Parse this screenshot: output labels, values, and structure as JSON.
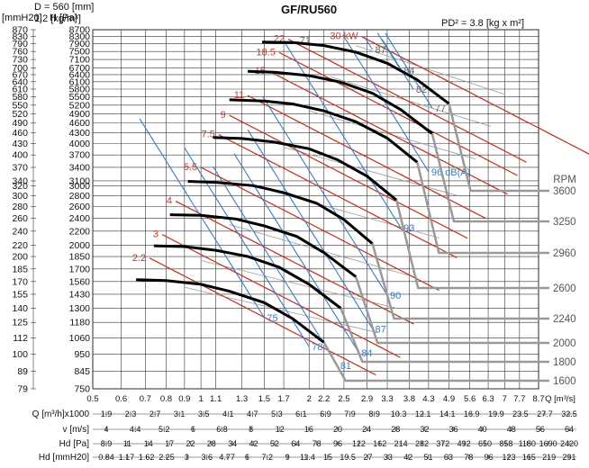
{
  "header": {
    "diameter": "D = 560 [mm]",
    "density": "1.2 [kg/m³]",
    "model": "GF/RU560",
    "pd2": "PD² = 3.8 [kg x m²]"
  },
  "chart_data": {
    "type": "line",
    "title": "GF/RU560",
    "y_axis_pa": {
      "label": "H [Pa]",
      "ticks": [
        8700,
        8300,
        7900,
        7500,
        7100,
        6700,
        6400,
        6100,
        5800,
        5500,
        5200,
        4900,
        4600,
        4300,
        4000,
        3700,
        3400,
        3100,
        3000,
        2800,
        2600,
        2400,
        2200,
        2000,
        1850,
        1700,
        1560,
        1430,
        1300,
        1180,
        1060,
        950,
        845,
        750
      ]
    },
    "y_axis_mmh2o": {
      "label": "[mmH20]",
      "ticks": [
        "870",
        "830",
        "790",
        "760",
        "730",
        "700",
        "670",
        "640",
        "610",
        "580",
        "550",
        "520",
        "490",
        "460",
        "430",
        "400",
        "370",
        "340",
        "320",
        "300",
        "280",
        "260",
        "240",
        "220",
        "200",
        "185",
        "170",
        "155",
        "140",
        "125",
        "112",
        "100",
        "89",
        "79"
      ]
    },
    "x_axis": {
      "label": "Q [m³/s]",
      "ticks": [
        "0.5",
        "0.6",
        "0.7",
        "0.8",
        "0.9",
        "1",
        "1.1",
        "1.3",
        "1.5",
        "1.7",
        "2",
        "2.2",
        "2.5",
        "2.9",
        "3.3",
        "3.8",
        "4.3",
        "4.9",
        "5.6",
        "6.3",
        "7",
        "7.7",
        "8.7"
      ]
    },
    "bottom_scales": [
      {
        "label": "Q [m³/h]x1000",
        "values": [
          "1.9",
          "2.3",
          "2.7",
          "3.1",
          "3.5",
          "4.1",
          "4.7",
          "5.3",
          "6.1",
          "6.9",
          "7.9",
          "8.9",
          "10.3",
          "12.1",
          "14.1",
          "16.9",
          "19.9",
          "23.5",
          "27.7",
          "32.5"
        ]
      },
      {
        "label": "v [m/s]",
        "values": [
          "4",
          "4.4",
          "5.2",
          "6",
          "6.8",
          "8",
          "12",
          "16",
          "20",
          "24",
          "28",
          "32",
          "36",
          "40",
          "48",
          "56",
          "64"
        ]
      },
      {
        "label": "Hd [Pa]",
        "values": [
          "8.9",
          "11",
          "14",
          "17",
          "22",
          "28",
          "34",
          "42",
          "52",
          "64",
          "78",
          "96",
          "122",
          "162",
          "214",
          "282",
          "372",
          "492",
          "650",
          "858",
          "1180",
          "1690",
          "2420"
        ]
      },
      {
        "label": "Hd [mmH20]",
        "values": [
          "0.84",
          "1.17",
          "1.62",
          "2.25",
          "3",
          "3.6",
          "4.77",
          "6",
          "7.2",
          "9",
          "11.4",
          "15",
          "19.5",
          "27",
          "33",
          "42",
          "51",
          "63",
          "78",
          "96",
          "123",
          "165",
          "219",
          "291"
        ]
      }
    ],
    "rpm": {
      "label": "RPM",
      "values": [
        3600,
        3250,
        2960,
        2600,
        2240,
        2000,
        1800,
        1600
      ]
    },
    "series": [
      {
        "name": "3600",
        "x": [
          1.48,
          1.8,
          2.2,
          2.7,
          3.3,
          4.0,
          4.9
        ],
        "y": [
          8000,
          7970,
          7810,
          7460,
          6920,
          6180,
          5250
        ]
      },
      {
        "name": "3250",
        "x": [
          1.35,
          1.6,
          2.0,
          2.45,
          3.0,
          3.6,
          4.4
        ],
        "y": [
          6550,
          6510,
          6360,
          6080,
          5640,
          5040,
          4280
        ]
      },
      {
        "name": "2960",
        "x": [
          1.2,
          1.5,
          1.8,
          2.2,
          2.7,
          3.3,
          4.0
        ],
        "y": [
          5390,
          5350,
          5240,
          5000,
          4640,
          4150,
          3520
        ]
      },
      {
        "name": "2600",
        "x": [
          1.08,
          1.3,
          1.6,
          2.0,
          2.4,
          2.9,
          3.5
        ],
        "y": [
          4170,
          4140,
          4040,
          3860,
          3580,
          3200,
          2720
        ]
      },
      {
        "name": "2240",
        "x": [
          0.92,
          1.1,
          1.4,
          1.7,
          2.1,
          2.5,
          3.0
        ],
        "y": [
          3090,
          3070,
          3000,
          2860,
          2660,
          2380,
          2020
        ]
      },
      {
        "name": "2000",
        "x": [
          0.82,
          1.0,
          1.25,
          1.5,
          1.85,
          2.2,
          2.7
        ],
        "y": [
          2460,
          2450,
          2390,
          2280,
          2120,
          1900,
          1610
        ]
      },
      {
        "name": "1800",
        "x": [
          0.74,
          0.9,
          1.1,
          1.35,
          1.65,
          2.0,
          2.45
        ],
        "y": [
          1990,
          1980,
          1930,
          1850,
          1720,
          1530,
          1300
        ]
      },
      {
        "name": "1600",
        "x": [
          0.66,
          0.8,
          1.0,
          1.2,
          1.5,
          1.8,
          2.2
        ],
        "y": [
          1580,
          1570,
          1530,
          1460,
          1350,
          1210,
          1030
        ]
      }
    ],
    "power_labels": [
      "2.2",
      "3",
      "4",
      "5.5",
      "7.5",
      "9",
      "11",
      "15",
      "18.5",
      "22",
      "30 kW"
    ],
    "noise_labels": [
      "71",
      "87",
      "84",
      "82",
      "77",
      "96 dB(A)",
      "93",
      "90",
      "87",
      "84",
      "81",
      "78",
      "75"
    ],
    "colors": {
      "performance": "#000000",
      "power": "#c0392b",
      "noise": "#3a7cc4",
      "efficiency": "#888888",
      "rpm_lines": "#999999"
    }
  }
}
